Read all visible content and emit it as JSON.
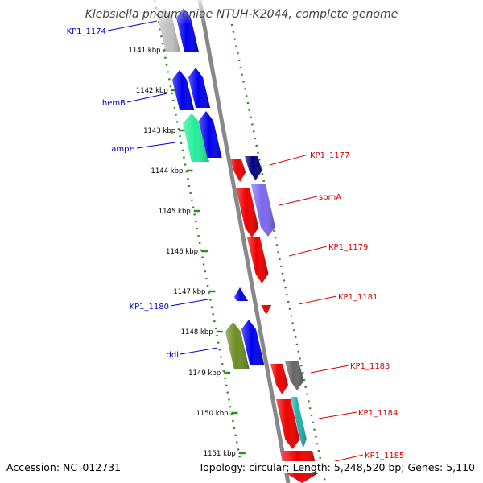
{
  "title": "Klebsiella pneumoniae NTUH-K2044, complete genome",
  "footer": {
    "accession": "Accession: NC_012731",
    "topology": "Topology: circular; Length: 5,248,520 bp; Genes: 5,110"
  },
  "ruler": {
    "labels": [
      "1141 kbp",
      "1142 kbp",
      "1143 kbp",
      "1144 kbp",
      "1145 kbp",
      "1146 kbp",
      "1147 kbp",
      "1148 kbp",
      "1149 kbp",
      "1150 kbp",
      "1151 kbp"
    ]
  },
  "colors": {
    "backbone": "#888888",
    "tick": "#2e8b22",
    "forward_label": "#0000cc",
    "reverse_label": "#dd0000"
  },
  "genes_forward": [
    {
      "label": "KP1_1174",
      "color": "#c0c0c0"
    },
    {
      "label": "",
      "color": "#0000ee"
    },
    {
      "label": "hemB",
      "color": "#0000ee"
    },
    {
      "label": "",
      "color": "#0000ee"
    },
    {
      "label": "ampH",
      "color": "#22ee99"
    },
    {
      "label": "",
      "color": "#0000ee"
    },
    {
      "label": "KP1_1180",
      "color": "#0000ee"
    },
    {
      "label": "ddl",
      "color": "#6b8e23"
    },
    {
      "label": "",
      "color": "#0000ee"
    }
  ],
  "genes_reverse": [
    {
      "label": "KP1_1177",
      "color": "#ee0000"
    },
    {
      "label": "",
      "color": "#000080"
    },
    {
      "label": "sbmA",
      "color": "#ee0000"
    },
    {
      "label": "",
      "color": "#7b68ee"
    },
    {
      "label": "KP1_1179",
      "color": "#ee0000"
    },
    {
      "label": "KP1_1181",
      "color": "#ee0000"
    },
    {
      "label": "KP1_1183",
      "color": "#ee0000"
    },
    {
      "label": "",
      "color": "#666666"
    },
    {
      "label": "KP1_1184",
      "color": "#ee0000"
    },
    {
      "label": "",
      "color": "#20b2aa"
    },
    {
      "label": "KP1_1185",
      "color": "#ee0000"
    }
  ]
}
